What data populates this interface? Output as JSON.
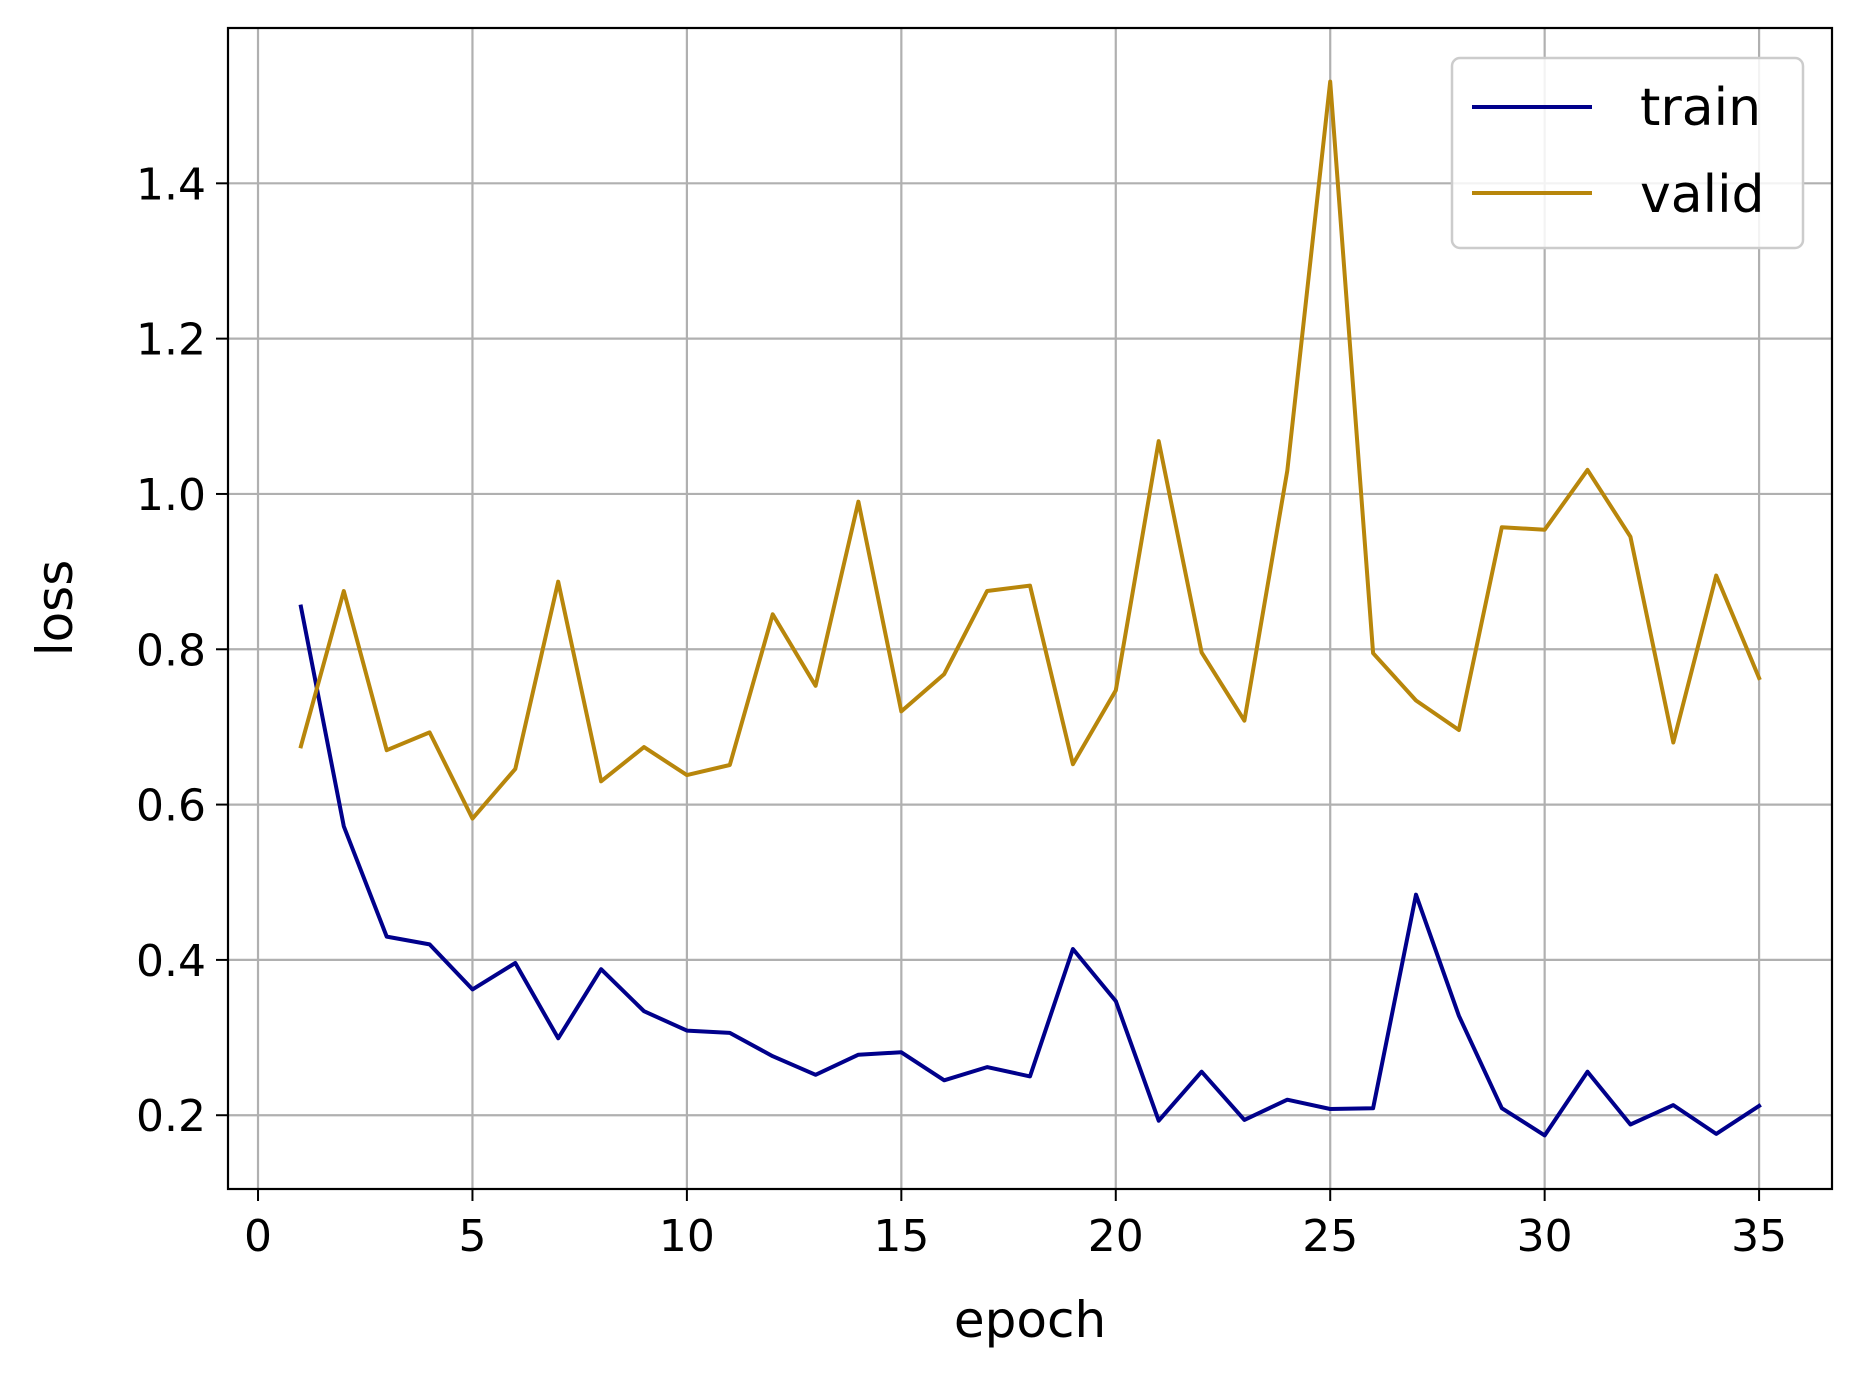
{
  "chart_data": {
    "type": "line",
    "xlabel": "epoch",
    "ylabel": "loss",
    "xlim": [
      -0.7,
      36.7
    ],
    "ylim": [
      0.105,
      1.6
    ],
    "x_ticks": [
      0,
      5,
      10,
      15,
      20,
      25,
      30,
      35
    ],
    "x_tick_labels": [
      "0",
      "5",
      "10",
      "15",
      "20",
      "25",
      "30",
      "35"
    ],
    "y_ticks": [
      0.2,
      0.4,
      0.6,
      0.8,
      1.0,
      1.2,
      1.4
    ],
    "y_tick_labels": [
      "0.2",
      "0.4",
      "0.6",
      "0.8",
      "1.0",
      "1.2",
      "1.4"
    ],
    "grid": true,
    "legend_position": "top-right",
    "x": [
      1,
      2,
      3,
      4,
      5,
      6,
      7,
      8,
      9,
      10,
      11,
      12,
      13,
      14,
      15,
      16,
      17,
      18,
      19,
      20,
      21,
      22,
      23,
      24,
      25,
      26,
      27,
      28,
      29,
      30,
      31,
      32,
      33,
      34,
      35
    ],
    "series": [
      {
        "name": "train",
        "color": "#00008b",
        "values": [
          0.855,
          0.572,
          0.43,
          0.42,
          0.362,
          0.396,
          0.299,
          0.388,
          0.334,
          0.309,
          0.306,
          0.276,
          0.252,
          0.278,
          0.281,
          0.245,
          0.262,
          0.25,
          0.414,
          0.347,
          0.193,
          0.256,
          0.194,
          0.22,
          0.208,
          0.209,
          0.484,
          0.328,
          0.209,
          0.174,
          0.256,
          0.188,
          0.213,
          0.176,
          0.212
        ]
      },
      {
        "name": "valid",
        "color": "#b8860b",
        "values": [
          0.675,
          0.875,
          0.67,
          0.693,
          0.582,
          0.646,
          0.887,
          0.63,
          0.674,
          0.638,
          0.651,
          0.845,
          0.753,
          0.99,
          0.72,
          0.768,
          0.875,
          0.882,
          0.652,
          0.747,
          1.068,
          0.796,
          0.708,
          1.03,
          1.531,
          0.795,
          0.734,
          0.696,
          0.957,
          0.954,
          1.031,
          0.945,
          0.68,
          0.895,
          0.763
        ]
      }
    ]
  }
}
